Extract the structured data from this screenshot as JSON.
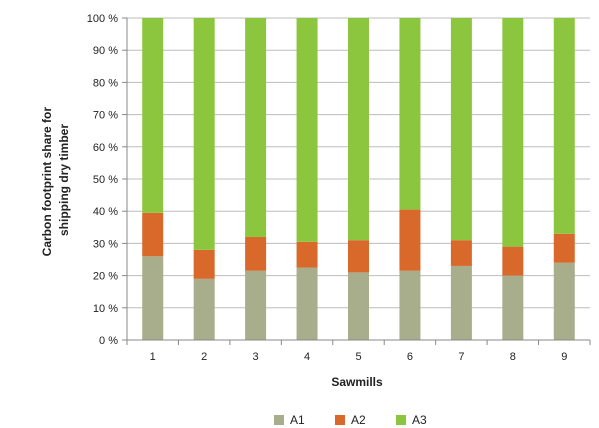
{
  "chart_data": {
    "type": "bar",
    "stacked": true,
    "percent": true,
    "categories": [
      "1",
      "2",
      "3",
      "4",
      "5",
      "6",
      "7",
      "8",
      "9"
    ],
    "series": [
      {
        "name": "A1",
        "color": "#a8ad8c",
        "values": [
          26,
          19,
          21.5,
          22.5,
          21,
          21.5,
          23,
          20,
          24
        ]
      },
      {
        "name": "A2",
        "color": "#d8692a",
        "values": [
          13.5,
          9,
          10.5,
          8,
          10,
          19,
          8,
          9,
          9
        ]
      },
      {
        "name": "A3",
        "color": "#8cc63e",
        "values": [
          60.5,
          72,
          68,
          69.5,
          69,
          59.5,
          69,
          71,
          67
        ]
      }
    ],
    "yticks": [
      "0 %",
      "10 %",
      "20 %",
      "30 %",
      "40 %",
      "50 %",
      "60 %",
      "70 %",
      "80 %",
      "90 %",
      "100 %"
    ],
    "ylim": [
      0,
      100
    ],
    "xlabel": "Sawmills",
    "ylabel_lines": [
      "Carbon footprint share for",
      "shipping dry timber"
    ],
    "grid": true,
    "legend_position": "bottom"
  }
}
